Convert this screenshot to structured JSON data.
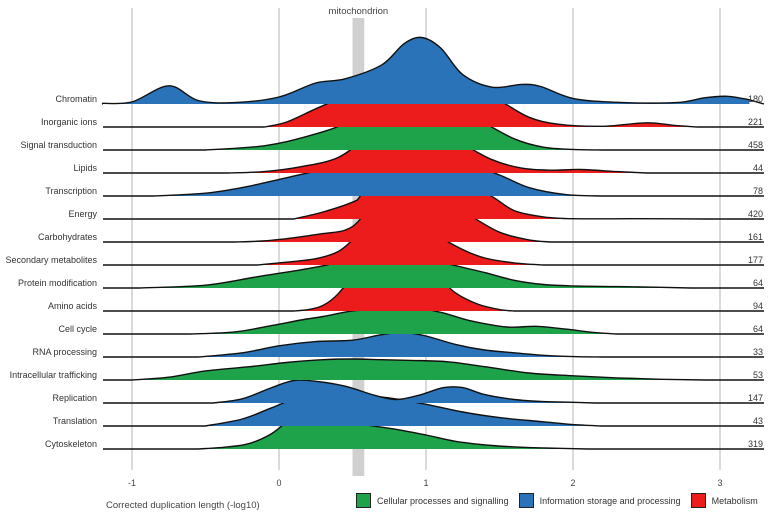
{
  "chart_data": {
    "type": "ridgeline",
    "title": "",
    "xlabel": "Corrected duplication length (-log10)",
    "ylabel": "",
    "xlim": [
      -1.15,
      3.2
    ],
    "x_ticks": [
      -1,
      0,
      1,
      2,
      3
    ],
    "x_tick_labels": [
      "-1",
      "0",
      "1",
      "2",
      "3"
    ],
    "grid": true,
    "highlight": {
      "label": "mitochondrion",
      "x_range": [
        0.5,
        0.58
      ]
    },
    "legend_position": "bottom-right",
    "categories": [
      {
        "name": "Cellular processes and signalling",
        "color": "#1fa34a"
      },
      {
        "name": "Information storage and processing",
        "color": "#2a73b8"
      },
      {
        "name": "Metabolism",
        "color": "#ec1c1c"
      }
    ],
    "series": [
      {
        "name": "Chromatin",
        "count": "180",
        "category": "Information storage and processing",
        "density": [
          [
            -1.2,
            0.05
          ],
          [
            -1.0,
            0.15
          ],
          [
            -0.75,
            1.3
          ],
          [
            -0.55,
            0.25
          ],
          [
            -0.3,
            0.1
          ],
          [
            0.0,
            0.5
          ],
          [
            0.25,
            1.5
          ],
          [
            0.45,
            1.8
          ],
          [
            0.7,
            2.8
          ],
          [
            0.85,
            4.3
          ],
          [
            0.97,
            4.75
          ],
          [
            1.1,
            4.0
          ],
          [
            1.25,
            2.1
          ],
          [
            1.45,
            1.2
          ],
          [
            1.65,
            1.4
          ],
          [
            1.78,
            1.25
          ],
          [
            2.0,
            0.4
          ],
          [
            2.3,
            0.12
          ],
          [
            2.7,
            0.1
          ],
          [
            2.9,
            0.45
          ],
          [
            3.05,
            0.55
          ],
          [
            3.2,
            0.3
          ]
        ]
      },
      {
        "name": "Inorganic ions",
        "count": "221",
        "category": "Metabolism",
        "density": [
          [
            -0.1,
            0
          ],
          [
            0.05,
            0.35
          ],
          [
            0.25,
            1.3
          ],
          [
            0.45,
            2.2
          ],
          [
            0.6,
            2.8
          ],
          [
            0.85,
            3.3
          ],
          [
            1.1,
            3.45
          ],
          [
            1.3,
            3.0
          ],
          [
            1.5,
            1.9
          ],
          [
            1.7,
            0.7
          ],
          [
            1.9,
            0.2
          ],
          [
            2.2,
            0.05
          ],
          [
            2.5,
            0.3
          ],
          [
            2.7,
            0.1
          ],
          [
            2.85,
            0
          ]
        ]
      },
      {
        "name": "Signal transduction",
        "count": "458",
        "category": "Cellular processes and signalling",
        "density": [
          [
            -0.5,
            0
          ],
          [
            -0.1,
            0.3
          ],
          [
            0.2,
            1.0
          ],
          [
            0.45,
            1.9
          ],
          [
            0.7,
            3.5
          ],
          [
            0.92,
            4.0
          ],
          [
            1.1,
            3.5
          ],
          [
            1.35,
            2.2
          ],
          [
            1.6,
            0.8
          ],
          [
            1.8,
            0.2
          ],
          [
            2.0,
            0.04
          ],
          [
            2.2,
            0
          ]
        ]
      },
      {
        "name": "Lipids",
        "count": "44",
        "category": "Metabolism",
        "density": [
          [
            -0.35,
            0
          ],
          [
            -0.1,
            0.1
          ],
          [
            0.15,
            0.45
          ],
          [
            0.4,
            1.1
          ],
          [
            0.6,
            2.6
          ],
          [
            0.75,
            3.85
          ],
          [
            0.9,
            4.3
          ],
          [
            1.05,
            3.55
          ],
          [
            1.25,
            2.1
          ],
          [
            1.45,
            0.95
          ],
          [
            1.65,
            0.35
          ],
          [
            1.85,
            0.2
          ],
          [
            2.05,
            0.25
          ],
          [
            2.3,
            0.1
          ],
          [
            2.5,
            0
          ]
        ]
      },
      {
        "name": "Transcription",
        "count": "78",
        "category": "Information storage and processing",
        "density": [
          [
            -0.85,
            0
          ],
          [
            -0.5,
            0.2
          ],
          [
            -0.25,
            0.6
          ],
          [
            0.05,
            1.3
          ],
          [
            0.35,
            2.0
          ],
          [
            0.55,
            2.3
          ],
          [
            0.8,
            2.45
          ],
          [
            1.0,
            2.2
          ],
          [
            1.3,
            2.15
          ],
          [
            1.5,
            1.5
          ],
          [
            1.7,
            0.6
          ],
          [
            1.95,
            0.1
          ],
          [
            2.2,
            0
          ]
        ]
      },
      {
        "name": "Energy",
        "count": "420",
        "category": "Metabolism",
        "density": [
          [
            0.1,
            0
          ],
          [
            0.3,
            0.5
          ],
          [
            0.5,
            1.2
          ],
          [
            0.55,
            1.6
          ],
          [
            0.62,
            2.9
          ],
          [
            0.68,
            3.7
          ],
          [
            0.75,
            4.15
          ],
          [
            0.85,
            4.1
          ],
          [
            0.95,
            3.4
          ],
          [
            1.05,
            2.6
          ],
          [
            1.15,
            2.2
          ],
          [
            1.3,
            2.3
          ],
          [
            1.45,
            1.6
          ],
          [
            1.6,
            0.6
          ],
          [
            1.8,
            0.15
          ],
          [
            2.0,
            0.02
          ],
          [
            2.4,
            0.02
          ],
          [
            2.7,
            0.01
          ],
          [
            2.9,
            0
          ]
        ]
      },
      {
        "name": "Carbohydrates",
        "count": "161",
        "category": "Metabolism",
        "density": [
          [
            -0.3,
            0
          ],
          [
            -0.1,
            0.08
          ],
          [
            0.1,
            0.3
          ],
          [
            0.3,
            0.6
          ],
          [
            0.45,
            0.85
          ],
          [
            0.55,
            1.6
          ],
          [
            0.65,
            3.4
          ],
          [
            0.75,
            4.8
          ],
          [
            0.85,
            5.15
          ],
          [
            0.95,
            4.8
          ],
          [
            1.05,
            4.0
          ],
          [
            1.15,
            3.0
          ],
          [
            1.3,
            1.9
          ],
          [
            1.5,
            0.7
          ],
          [
            1.7,
            0.15
          ],
          [
            1.85,
            0
          ]
        ]
      },
      {
        "name": "Secondary metabolites",
        "count": "177",
        "category": "Metabolism",
        "density": [
          [
            -0.15,
            0
          ],
          [
            0.05,
            0.2
          ],
          [
            0.25,
            0.45
          ],
          [
            0.4,
            0.95
          ],
          [
            0.5,
            1.8
          ],
          [
            0.6,
            3.0
          ],
          [
            0.7,
            3.8
          ],
          [
            0.8,
            3.9
          ],
          [
            0.9,
            3.6
          ],
          [
            1.0,
            3.0
          ],
          [
            1.1,
            2.0
          ],
          [
            1.25,
            1.1
          ],
          [
            1.4,
            0.5
          ],
          [
            1.6,
            0.15
          ],
          [
            1.8,
            0
          ]
        ]
      },
      {
        "name": "Protein modification",
        "count": "64",
        "category": "Cellular processes and signalling",
        "density": [
          [
            -0.95,
            0
          ],
          [
            -0.5,
            0.2
          ],
          [
            -0.15,
            0.8
          ],
          [
            0.15,
            1.3
          ],
          [
            0.35,
            1.7
          ],
          [
            0.55,
            2.3
          ],
          [
            0.75,
            2.45
          ],
          [
            0.95,
            2.2
          ],
          [
            1.2,
            1.6
          ],
          [
            1.4,
            1.1
          ],
          [
            1.6,
            0.55
          ],
          [
            1.8,
            0.25
          ],
          [
            2.0,
            0.15
          ],
          [
            2.3,
            0.1
          ],
          [
            2.6,
            0.05
          ],
          [
            2.8,
            0
          ]
        ]
      },
      {
        "name": "Amino acids",
        "count": "94",
        "category": "Metabolism",
        "density": [
          [
            0.1,
            0
          ],
          [
            0.2,
            0.1
          ],
          [
            0.3,
            0.4
          ],
          [
            0.4,
            1.2
          ],
          [
            0.52,
            2.8
          ],
          [
            0.62,
            4.2
          ],
          [
            0.72,
            4.7
          ],
          [
            0.8,
            4.6
          ],
          [
            0.9,
            4.1
          ],
          [
            1.0,
            3.3
          ],
          [
            1.1,
            2.3
          ],
          [
            1.2,
            1.3
          ],
          [
            1.35,
            0.5
          ],
          [
            1.5,
            0.1
          ],
          [
            1.6,
            0
          ]
        ]
      },
      {
        "name": "Cell cycle",
        "count": "64",
        "category": "Cellular processes and signalling",
        "density": [
          [
            -0.6,
            0
          ],
          [
            -0.3,
            0.15
          ],
          [
            -0.05,
            0.6
          ],
          [
            0.15,
            1.0
          ],
          [
            0.3,
            1.25
          ],
          [
            0.5,
            1.65
          ],
          [
            0.7,
            1.75
          ],
          [
            0.9,
            1.9
          ],
          [
            1.1,
            1.55
          ],
          [
            1.3,
            0.95
          ],
          [
            1.55,
            0.5
          ],
          [
            1.75,
            0.55
          ],
          [
            1.95,
            0.35
          ],
          [
            2.15,
            0.1
          ],
          [
            2.3,
            0
          ]
        ]
      },
      {
        "name": "RNA processing",
        "count": "33",
        "category": "Information storage and processing",
        "density": [
          [
            -0.55,
            0
          ],
          [
            -0.25,
            0.3
          ],
          [
            0.0,
            0.8
          ],
          [
            0.25,
            1.1
          ],
          [
            0.5,
            1.2
          ],
          [
            0.7,
            1.6
          ],
          [
            0.85,
            1.75
          ],
          [
            1.0,
            1.5
          ],
          [
            1.2,
            0.9
          ],
          [
            1.4,
            0.5
          ],
          [
            1.6,
            0.3
          ],
          [
            1.8,
            0.12
          ],
          [
            2.0,
            0.03
          ],
          [
            2.2,
            0
          ]
        ]
      },
      {
        "name": "Intracellular trafficking",
        "count": "53",
        "category": "Cellular processes and signalling",
        "density": [
          [
            -1.0,
            0
          ],
          [
            -0.75,
            0.2
          ],
          [
            -0.5,
            0.65
          ],
          [
            -0.2,
            0.95
          ],
          [
            0.05,
            1.25
          ],
          [
            0.3,
            1.45
          ],
          [
            0.5,
            1.5
          ],
          [
            0.7,
            1.45
          ],
          [
            0.9,
            1.4
          ],
          [
            1.15,
            1.3
          ],
          [
            1.4,
            0.95
          ],
          [
            1.7,
            0.5
          ],
          [
            2.0,
            0.3
          ],
          [
            2.3,
            0.15
          ],
          [
            2.6,
            0.05
          ],
          [
            2.9,
            0
          ]
        ]
      },
      {
        "name": "Replication",
        "count": "147",
        "category": "Information storage and processing",
        "density": [
          [
            -0.45,
            0
          ],
          [
            -0.25,
            0.3
          ],
          [
            -0.05,
            1.1
          ],
          [
            0.1,
            1.6
          ],
          [
            0.25,
            1.55
          ],
          [
            0.45,
            1.2
          ],
          [
            0.65,
            0.55
          ],
          [
            0.8,
            0.25
          ],
          [
            0.95,
            0.55
          ],
          [
            1.12,
            1.1
          ],
          [
            1.25,
            1.1
          ],
          [
            1.4,
            0.6
          ],
          [
            1.6,
            0.25
          ],
          [
            1.8,
            0.1
          ],
          [
            2.0,
            0.05
          ],
          [
            2.15,
            0
          ]
        ]
      },
      {
        "name": "Translation",
        "count": "43",
        "category": "Information storage and processing",
        "density": [
          [
            -0.5,
            0
          ],
          [
            -0.25,
            0.5
          ],
          [
            -0.05,
            1.3
          ],
          [
            0.12,
            2.0
          ],
          [
            0.3,
            2.3
          ],
          [
            0.5,
            2.25
          ],
          [
            0.75,
            2.0
          ],
          [
            1.0,
            1.55
          ],
          [
            1.25,
            1.0
          ],
          [
            1.5,
            0.6
          ],
          [
            1.8,
            0.3
          ],
          [
            2.0,
            0.1
          ],
          [
            2.2,
            0
          ]
        ]
      },
      {
        "name": "Cytoskeleton",
        "count": "319",
        "category": "Cellular processes and signalling",
        "density": [
          [
            -0.55,
            0
          ],
          [
            -0.35,
            0.15
          ],
          [
            -0.2,
            0.4
          ],
          [
            -0.05,
            1.1
          ],
          [
            0.1,
            2.3
          ],
          [
            0.2,
            2.5
          ],
          [
            0.35,
            2.3
          ],
          [
            0.55,
            1.8
          ],
          [
            0.8,
            1.4
          ],
          [
            1.0,
            1.0
          ],
          [
            1.2,
            0.55
          ],
          [
            1.45,
            0.25
          ],
          [
            1.7,
            0.1
          ],
          [
            1.9,
            0.05
          ],
          [
            2.1,
            0
          ]
        ]
      }
    ]
  }
}
